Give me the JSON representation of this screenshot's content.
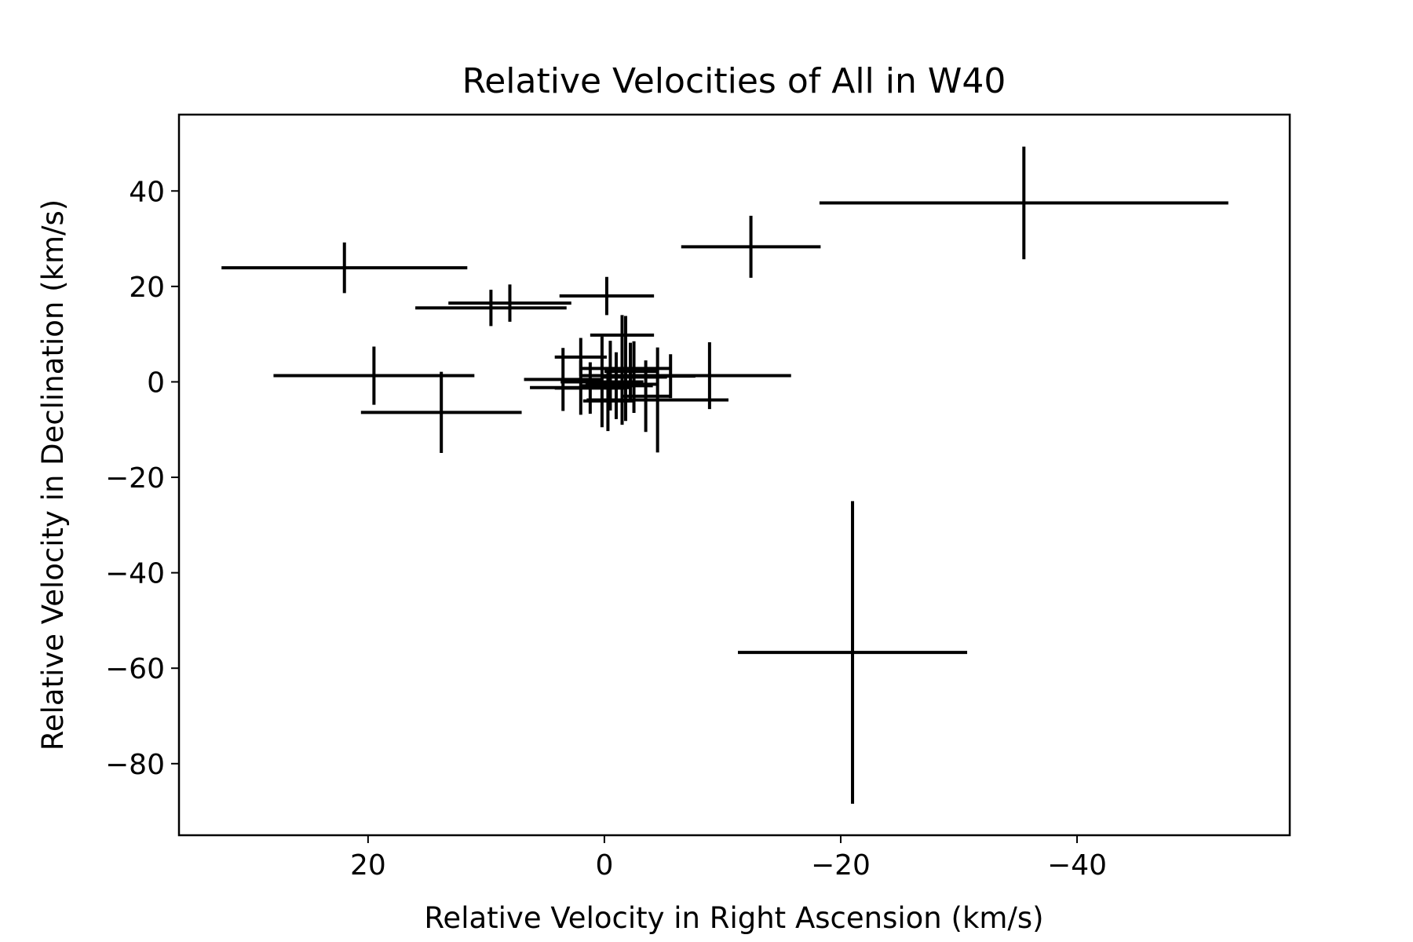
{
  "chart_data": {
    "type": "scatter",
    "title": "Relative Velocities of All in W40",
    "xlabel": "Relative Velocity in Right Ascension (km/s)",
    "ylabel": "Relative Velocity in Declination (km/s)",
    "xlim": [
      36,
      -58
    ],
    "ylim": [
      -95,
      56
    ],
    "xticks": [
      20,
      0,
      -20,
      -40
    ],
    "xtick_labels": [
      "20",
      "0",
      "−20",
      "−40"
    ],
    "yticks": [
      40,
      20,
      0,
      -20,
      -40,
      -60,
      -80
    ],
    "ytick_labels": [
      "40",
      "20",
      "0",
      "−20",
      "−40",
      "−60",
      "−80"
    ],
    "grid": false,
    "legend": "none",
    "color": "#000000",
    "points": [
      {
        "x": -35.5,
        "y": 37.5,
        "xerr": 17.3,
        "yerr": 11.8
      },
      {
        "x": -12.4,
        "y": 28.3,
        "xerr": 5.9,
        "yerr": 6.5
      },
      {
        "x": 22.0,
        "y": 23.9,
        "xerr": 10.4,
        "yerr": 5.3
      },
      {
        "x": 9.6,
        "y": 15.5,
        "xerr": 6.4,
        "yerr": 3.8
      },
      {
        "x": 8.0,
        "y": 16.5,
        "xerr": 5.2,
        "yerr": 3.9
      },
      {
        "x": -0.2,
        "y": 18.0,
        "xerr": 4.0,
        "yerr": 4.0
      },
      {
        "x": 19.5,
        "y": 1.3,
        "xerr": 8.5,
        "yerr": 6.1
      },
      {
        "x": 13.8,
        "y": -6.4,
        "xerr": 6.8,
        "yerr": 8.5
      },
      {
        "x": -21.0,
        "y": -56.7,
        "xerr": 9.7,
        "yerr": 31.7
      },
      {
        "x": -8.9,
        "y": 1.3,
        "xerr": 6.9,
        "yerr": 7.0
      },
      {
        "x": -1.5,
        "y": 9.8,
        "xerr": 2.7,
        "yerr": 4.2
      },
      {
        "x": 2.0,
        "y": 5.2,
        "xerr": 2.2,
        "yerr": 4.0
      },
      {
        "x": 3.5,
        "y": 0.5,
        "xerr": 3.3,
        "yerr": 6.6
      },
      {
        "x": 2.0,
        "y": -1.2,
        "xerr": 4.3,
        "yerr": 5.7
      },
      {
        "x": 0.2,
        "y": 0.0,
        "xerr": 3.5,
        "yerr": 9.5
      },
      {
        "x": -0.5,
        "y": 1.3,
        "xerr": 2.5,
        "yerr": 7.3
      },
      {
        "x": -1.5,
        "y": -0.5,
        "xerr": 3.1,
        "yerr": 8.5
      },
      {
        "x": -2.5,
        "y": 1.0,
        "xerr": 2.8,
        "yerr": 7.5
      },
      {
        "x": -3.5,
        "y": -3.0,
        "xerr": 2.0,
        "yerr": 7.5
      },
      {
        "x": -4.5,
        "y": -3.8,
        "xerr": 6.0,
        "yerr": 11.0
      },
      {
        "x": -5.6,
        "y": 1.2,
        "xerr": 2.1,
        "yerr": 4.6
      },
      {
        "x": -0.3,
        "y": -4.0,
        "xerr": 2.1,
        "yerr": 6.3
      },
      {
        "x": 1.2,
        "y": -1.3,
        "xerr": 3.0,
        "yerr": 5.4
      },
      {
        "x": -1.0,
        "y": -0.8,
        "xerr": 3.1,
        "yerr": 7.0
      },
      {
        "x": -2.2,
        "y": 2.2,
        "xerr": 2.2,
        "yerr": 6.0
      },
      {
        "x": -1.8,
        "y": 2.8,
        "xerr": 3.7,
        "yerr": 11.0
      }
    ]
  }
}
